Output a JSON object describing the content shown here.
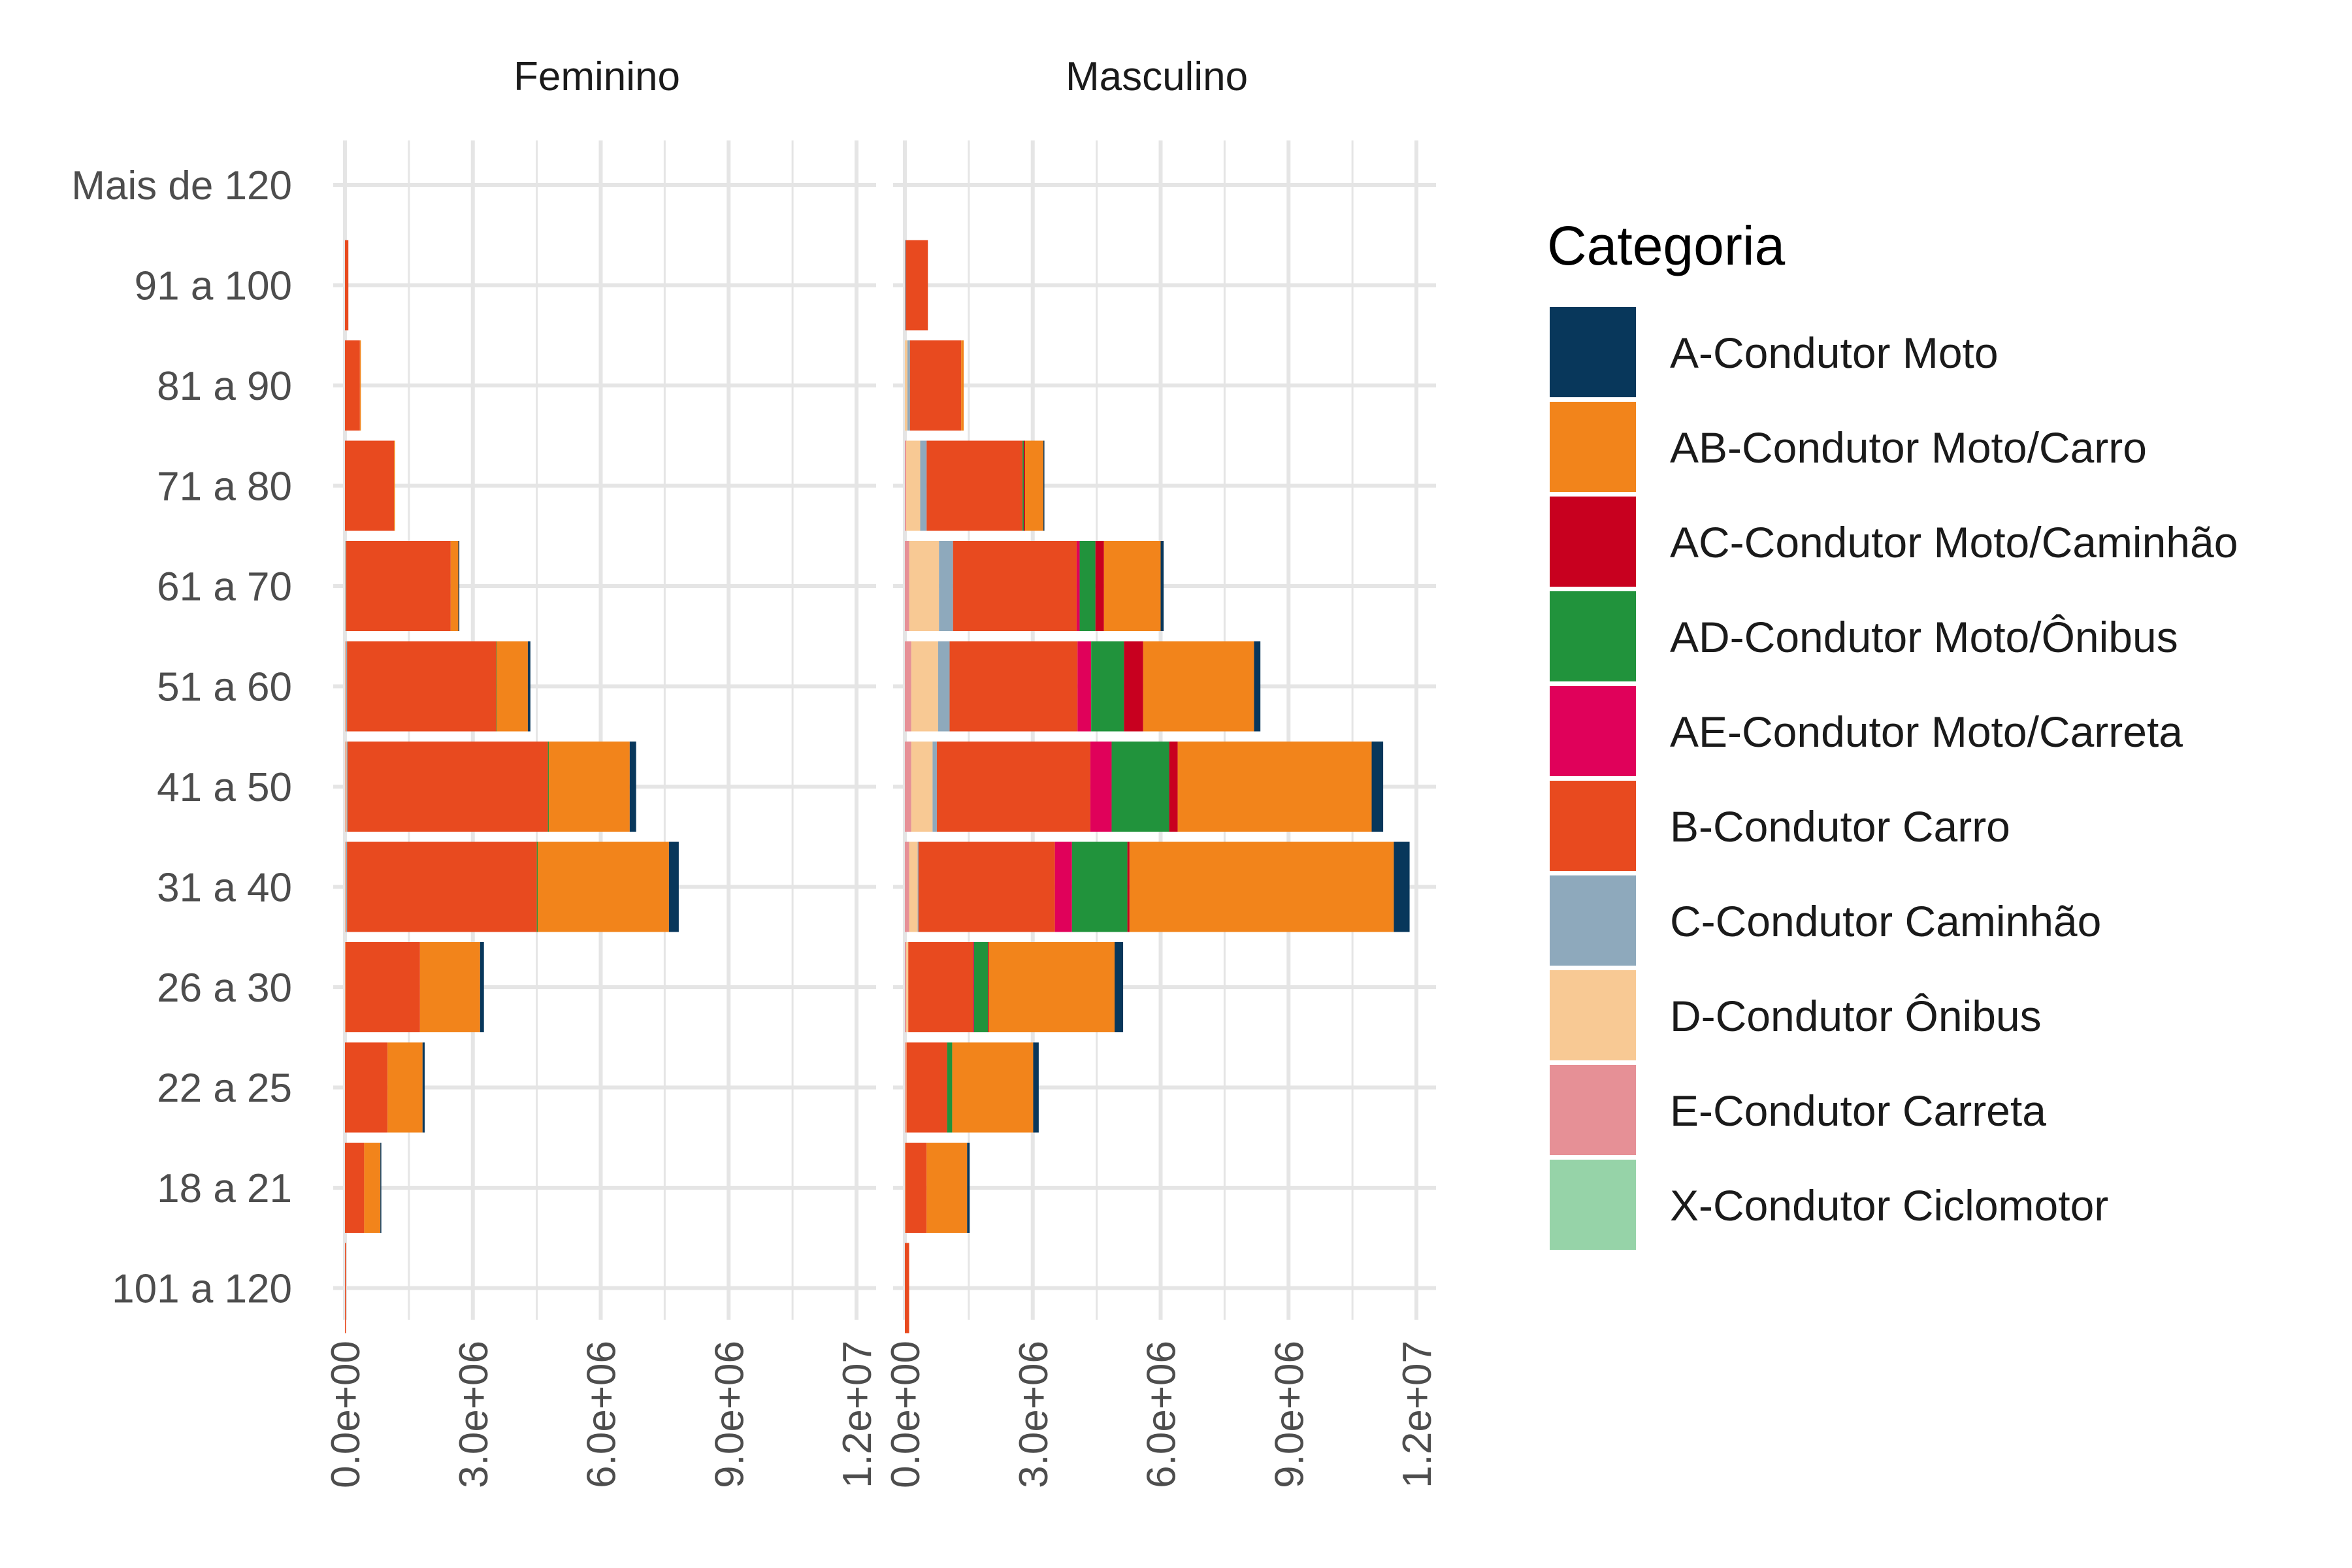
{
  "chart_data": {
    "type": "bar",
    "orientation": "horizontal",
    "stacked": true,
    "legend_title": "Categoria",
    "legend_position": "right",
    "grid": true,
    "xlim": [
      0,
      12000000
    ],
    "x_ticks": [
      0,
      3000000,
      6000000,
      9000000,
      12000000
    ],
    "x_tick_labels": [
      "0.0e+00",
      "3.0e+06",
      "6.0e+06",
      "9.0e+06",
      "1.2e+07"
    ],
    "categories": [
      "Mais de 120",
      "91 a 100",
      "81 a 90",
      "71 a 80",
      "61 a 70",
      "51 a 60",
      "41 a 50",
      "31 a 40",
      "26 a 30",
      "22 a 25",
      "18 a 21",
      "101 a 120"
    ],
    "series_info": [
      {
        "name": "A-Condutor Moto",
        "color": "#08375b"
      },
      {
        "name": "AB-Condutor Moto/Carro",
        "color": "#f2841b"
      },
      {
        "name": "AC-Condutor Moto/Caminhão",
        "color": "#c8001f"
      },
      {
        "name": "AD-Condutor Moto/Ônibus",
        "color": "#21933c"
      },
      {
        "name": "AE-Condutor Moto/Carreta",
        "color": "#e0015a"
      },
      {
        "name": "B-Condutor Carro",
        "color": "#e84a1f"
      },
      {
        "name": "C-Condutor Caminhão",
        "color": "#8ea9bc"
      },
      {
        "name": "D-Condutor Ônibus",
        "color": "#f8c994"
      },
      {
        "name": "E-Condutor Carreta",
        "color": "#e69096"
      },
      {
        "name": "X-Condutor Ciclomotor",
        "color": "#96d3a8"
      }
    ],
    "stack_order": [
      "X-Condutor Ciclomotor",
      "E-Condutor Carreta",
      "D-Condutor Ônibus",
      "C-Condutor Caminhão",
      "B-Condutor Carro",
      "AE-Condutor Moto/Carreta",
      "AD-Condutor Moto/Ônibus",
      "AC-Condutor Moto/Caminhão",
      "AB-Condutor Moto/Carro",
      "A-Condutor Moto"
    ],
    "panels": [
      {
        "title": "Feminino",
        "rows": [
          {
            "category": "Mais de 120",
            "values": {}
          },
          {
            "category": "91 a 100",
            "values": {
              "B-Condutor Carro": 80000
            }
          },
          {
            "category": "81 a 90",
            "values": {
              "B-Condutor Carro": 350000,
              "AB-Condutor Moto/Carro": 10000
            }
          },
          {
            "category": "71 a 80",
            "values": {
              "B-Condutor Carro": 1150000,
              "AB-Condutor Moto/Carro": 20000
            }
          },
          {
            "category": "61 a 70",
            "values": {
              "D-Condutor Ônibus": 10000,
              "C-Condutor Caminhão": 20000,
              "B-Condutor Carro": 2450000,
              "AB-Condutor Moto/Carro": 180000,
              "A-Condutor Moto": 20000
            }
          },
          {
            "category": "51 a 60",
            "values": {
              "E-Condutor Carreta": 10000,
              "D-Condutor Ônibus": 20000,
              "C-Condutor Caminhão": 20000,
              "B-Condutor Carro": 3500000,
              "AD-Condutor Moto/Ônibus": 10000,
              "AB-Condutor Moto/Carro": 730000,
              "A-Condutor Moto": 60000
            }
          },
          {
            "category": "41 a 50",
            "values": {
              "E-Condutor Carreta": 10000,
              "D-Condutor Ônibus": 30000,
              "C-Condutor Caminhão": 20000,
              "B-Condutor Carro": 4700000,
              "AD-Condutor Moto/Ônibus": 20000,
              "AB-Condutor Moto/Carro": 1900000,
              "A-Condutor Moto": 150000
            }
          },
          {
            "category": "31 a 40",
            "values": {
              "E-Condutor Carreta": 10000,
              "D-Condutor Ônibus": 20000,
              "C-Condutor Caminhão": 20000,
              "B-Condutor Carro": 4450000,
              "AD-Condutor Moto/Ônibus": 20000,
              "AB-Condutor Moto/Carro": 3080000,
              "A-Condutor Moto": 230000
            }
          },
          {
            "category": "26 a 30",
            "values": {
              "D-Condutor Ônibus": 10000,
              "B-Condutor Carro": 1750000,
              "AB-Condutor Moto/Carro": 1410000,
              "A-Condutor Moto": 90000
            }
          },
          {
            "category": "22 a 25",
            "values": {
              "B-Condutor Carro": 1000000,
              "AB-Condutor Moto/Carro": 820000,
              "A-Condutor Moto": 50000
            }
          },
          {
            "category": "18 a 21",
            "values": {
              "B-Condutor Carro": 450000,
              "AB-Condutor Moto/Carro": 380000,
              "A-Condutor Moto": 20000
            }
          },
          {
            "category": "101 a 120",
            "values": {
              "B-Condutor Carro": 15000
            }
          }
        ]
      },
      {
        "title": "Masculino",
        "rows": [
          {
            "category": "Mais de 120",
            "values": {}
          },
          {
            "category": "91 a 100",
            "values": {
              "C-Condutor Caminhão": 20000,
              "B-Condutor Carro": 520000
            }
          },
          {
            "category": "81 a 90",
            "values": {
              "D-Condutor Ônibus": 60000,
              "C-Condutor Caminhão": 60000,
              "B-Condutor Carro": 1200000,
              "AB-Condutor Moto/Carro": 60000
            }
          },
          {
            "category": "71 a 80",
            "values": {
              "E-Condutor Carreta": 30000,
              "D-Condutor Ônibus": 330000,
              "C-Condutor Caminhão": 150000,
              "B-Condutor Carro": 2250000,
              "AD-Condutor Moto/Ônibus": 30000,
              "AC-Condutor Moto/Caminhão": 30000,
              "AB-Condutor Moto/Carro": 430000,
              "A-Condutor Moto": 20000
            }
          },
          {
            "category": "61 a 70",
            "values": {
              "E-Condutor Carreta": 100000,
              "D-Condutor Ônibus": 700000,
              "C-Condutor Caminhão": 330000,
              "B-Condutor Carro": 2900000,
              "AE-Condutor Moto/Carreta": 70000,
              "AD-Condutor Moto/Ônibus": 370000,
              "AC-Condutor Moto/Caminhão": 200000,
              "AB-Condutor Moto/Carro": 1330000,
              "A-Condutor Moto": 70000
            }
          },
          {
            "category": "51 a 60",
            "values": {
              "E-Condutor Carreta": 150000,
              "D-Condutor Ônibus": 630000,
              "C-Condutor Caminhão": 270000,
              "B-Condutor Carro": 3000000,
              "AE-Condutor Moto/Carreta": 320000,
              "AD-Condutor Moto/Ônibus": 770000,
              "AC-Condutor Moto/Caminhão": 450000,
              "AB-Condutor Moto/Carro": 2600000,
              "A-Condutor Moto": 150000
            }
          },
          {
            "category": "41 a 50",
            "values": {
              "E-Condutor Carreta": 150000,
              "D-Condutor Ônibus": 500000,
              "C-Condutor Caminhão": 100000,
              "B-Condutor Carro": 3600000,
              "AE-Condutor Moto/Carreta": 500000,
              "AD-Condutor Moto/Ônibus": 1350000,
              "AC-Condutor Moto/Caminhão": 200000,
              "AB-Condutor Moto/Carro": 4550000,
              "A-Condutor Moto": 270000
            }
          },
          {
            "category": "31 a 40",
            "values": {
              "E-Condutor Carreta": 100000,
              "D-Condutor Ônibus": 200000,
              "C-Condutor Caminhão": 20000,
              "B-Condutor Carro": 3200000,
              "AE-Condutor Moto/Carreta": 400000,
              "AD-Condutor Moto/Ônibus": 1300000,
              "AC-Condutor Moto/Caminhão": 50000,
              "AB-Condutor Moto/Carro": 6200000,
              "A-Condutor Moto": 370000
            }
          },
          {
            "category": "26 a 30",
            "values": {
              "E-Condutor Carreta": 30000,
              "D-Condutor Ônibus": 50000,
              "B-Condutor Carro": 1520000,
              "AE-Condutor Moto/Carreta": 20000,
              "AD-Condutor Moto/Ônibus": 330000,
              "AC-Condutor Moto/Caminhão": 20000,
              "AB-Condutor Moto/Carro": 2950000,
              "A-Condutor Moto": 200000
            }
          },
          {
            "category": "22 a 25",
            "values": {
              "E-Condutor Carreta": 20000,
              "D-Condutor Ônibus": 20000,
              "B-Condutor Carro": 950000,
              "AD-Condutor Moto/Ônibus": 120000,
              "AB-Condutor Moto/Carro": 1900000,
              "A-Condutor Moto": 130000
            }
          },
          {
            "category": "18 a 21",
            "values": {
              "D-Condutor Ônibus": 10000,
              "B-Condutor Carro": 500000,
              "AB-Condutor Moto/Carro": 950000,
              "A-Condutor Moto": 60000
            }
          },
          {
            "category": "101 a 120",
            "values": {
              "B-Condutor Carro": 100000
            }
          }
        ]
      }
    ]
  }
}
